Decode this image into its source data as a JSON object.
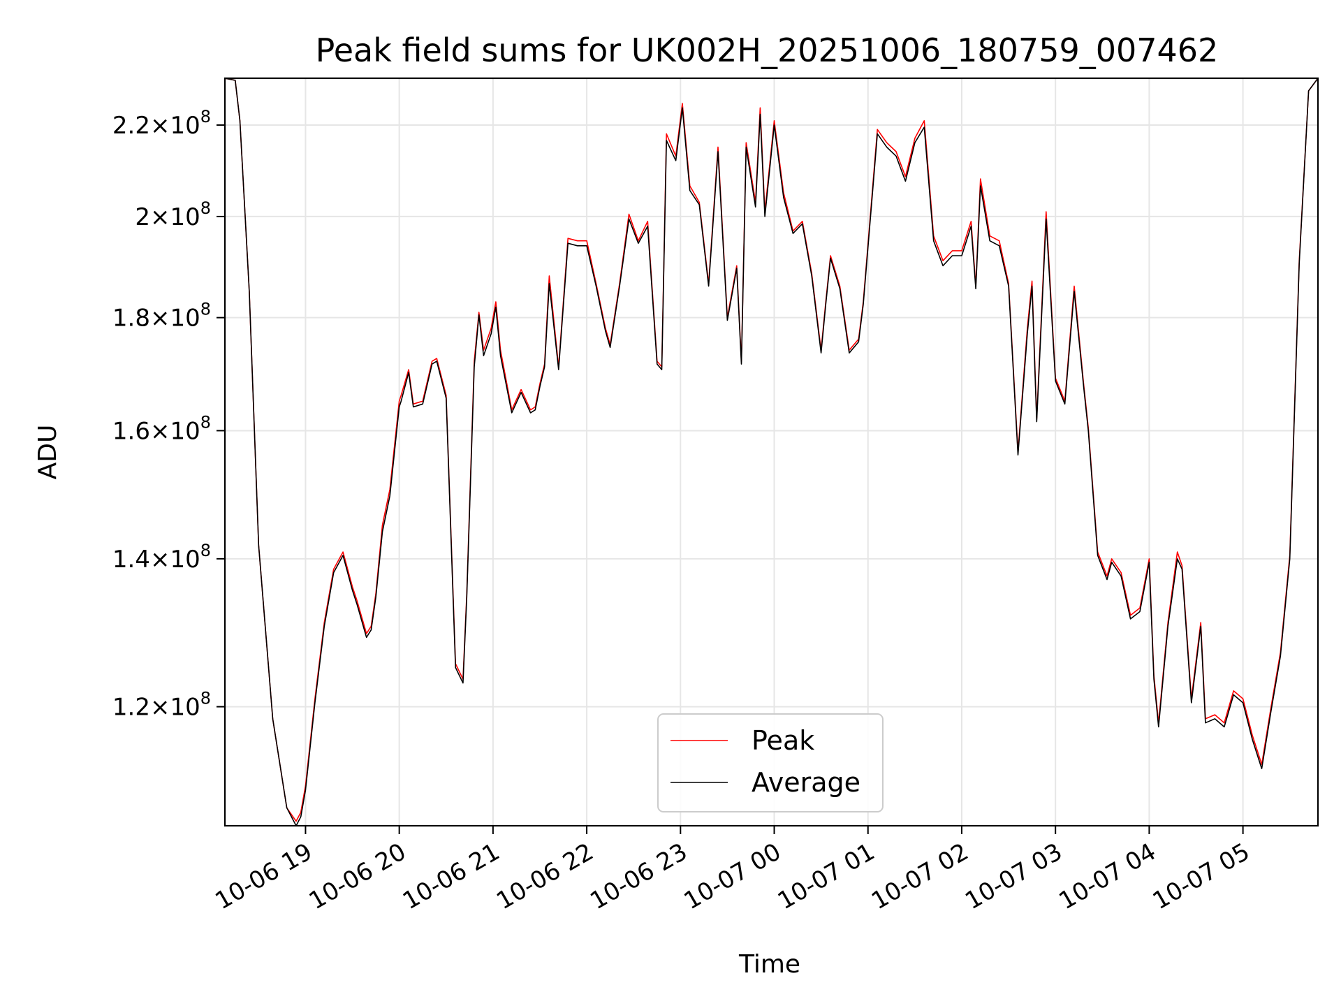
{
  "chart_data": {
    "type": "line",
    "title": "Peak field sums for UK002H_20251006_180759_007462",
    "xlabel": "Time",
    "ylabel": "ADU",
    "yscale": "log",
    "ylim": [
      106000000,
      231000000
    ],
    "xlim": [
      -0.86,
      10.8
    ],
    "grid": true,
    "legend_position": "lower center",
    "x_ticks": [
      {
        "value": 0,
        "label": "10-06 19"
      },
      {
        "value": 1,
        "label": "10-06 20"
      },
      {
        "value": 2,
        "label": "10-06 21"
      },
      {
        "value": 3,
        "label": "10-06 22"
      },
      {
        "value": 4,
        "label": "10-06 23"
      },
      {
        "value": 5,
        "label": "10-07 00"
      },
      {
        "value": 6,
        "label": "10-07 01"
      },
      {
        "value": 7,
        "label": "10-07 02"
      },
      {
        "value": 8,
        "label": "10-07 03"
      },
      {
        "value": 9,
        "label": "10-07 04"
      },
      {
        "value": 10,
        "label": "10-07 05"
      }
    ],
    "y_ticks": [
      {
        "value": 120000000,
        "mantissa": "1.2",
        "base": "10",
        "exp": "8"
      },
      {
        "value": 140000000,
        "mantissa": "1.4",
        "base": "10",
        "exp": "8"
      },
      {
        "value": 160000000,
        "mantissa": "1.6",
        "base": "10",
        "exp": "8"
      },
      {
        "value": 180000000,
        "mantissa": "1.8",
        "base": "10",
        "exp": "8"
      },
      {
        "value": 200000000,
        "mantissa": "2",
        "base": "10",
        "exp": "8"
      },
      {
        "value": 220000000,
        "mantissa": "2.2",
        "base": "10",
        "exp": "8"
      }
    ],
    "x_unit_note": "x values are hours after 10-06 19:00",
    "series": [
      {
        "name": "Peak",
        "color": "#ff0000",
        "x": [
          -0.86,
          -0.75,
          -0.7,
          -0.6,
          -0.5,
          -0.35,
          -0.2,
          -0.1,
          -0.05,
          0.0,
          0.1,
          0.2,
          0.3,
          0.4,
          0.5,
          0.55,
          0.65,
          0.7,
          0.75,
          0.82,
          0.9,
          1.0,
          1.02,
          1.1,
          1.15,
          1.25,
          1.35,
          1.4,
          1.5,
          1.6,
          1.68,
          1.72,
          1.8,
          1.85,
          1.9,
          1.98,
          2.03,
          2.08,
          2.2,
          2.3,
          2.4,
          2.45,
          2.5,
          2.55,
          2.6,
          2.7,
          2.8,
          2.9,
          3.0,
          3.1,
          3.2,
          3.25,
          3.35,
          3.45,
          3.55,
          3.65,
          3.75,
          3.8,
          3.85,
          3.95,
          4.02,
          4.1,
          4.2,
          4.3,
          4.4,
          4.5,
          4.6,
          4.65,
          4.7,
          4.8,
          4.85,
          4.9,
          5.0,
          5.1,
          5.2,
          5.3,
          5.4,
          5.5,
          5.55,
          5.6,
          5.7,
          5.8,
          5.9,
          5.95,
          6.1,
          6.2,
          6.3,
          6.4,
          6.5,
          6.6,
          6.7,
          6.8,
          6.9,
          7.0,
          7.1,
          7.15,
          7.2,
          7.3,
          7.4,
          7.5,
          7.6,
          7.7,
          7.75,
          7.8,
          7.9,
          8.0,
          8.1,
          8.2,
          8.3,
          8.35,
          8.45,
          8.55,
          8.6,
          8.7,
          8.8,
          8.9,
          9.0,
          9.05,
          9.1,
          9.2,
          9.3,
          9.35,
          9.45,
          9.55,
          9.6,
          9.7,
          9.8,
          9.9,
          10.0,
          10.1,
          10.2,
          10.3,
          10.4,
          10.5,
          10.6,
          10.7,
          10.8
        ],
        "values": [
          231000000,
          230500000,
          221000000,
          185000000,
          142000000,
          118500000,
          108000000,
          106500000,
          107500000,
          110500000,
          121000000,
          131000000,
          138500000,
          141000000,
          136000000,
          134000000,
          129500000,
          130500000,
          135000000,
          145000000,
          150500000,
          165000000,
          166000000,
          170500000,
          164500000,
          165000000,
          172000000,
          172500000,
          166000000,
          125500000,
          123500000,
          135000000,
          172000000,
          181000000,
          174000000,
          178000000,
          183000000,
          174000000,
          163500000,
          167000000,
          163500000,
          164000000,
          168000000,
          171500000,
          188000000,
          171000000,
          195500000,
          195000000,
          195000000,
          186500000,
          178000000,
          175000000,
          186500000,
          200500000,
          195000000,
          199000000,
          172000000,
          171000000,
          218000000,
          213000000,
          225000000,
          206500000,
          203000000,
          186500000,
          215000000,
          180000000,
          190000000,
          172000000,
          216000000,
          203000000,
          224000000,
          201000000,
          221000000,
          205000000,
          197000000,
          199000000,
          188500000,
          174000000,
          183000000,
          192000000,
          186000000,
          174000000,
          176000000,
          183000000,
          219000000,
          216000000,
          214000000,
          208500000,
          217000000,
          221000000,
          196000000,
          191000000,
          193000000,
          193000000,
          199000000,
          186000000,
          208000000,
          196000000,
          195000000,
          186500000,
          156500000,
          178000000,
          187000000,
          162000000,
          201000000,
          169000000,
          165000000,
          186000000,
          168000000,
          160500000,
          141000000,
          137500000,
          140000000,
          138000000,
          132000000,
          133000000,
          140000000,
          124000000,
          118000000,
          131000000,
          141000000,
          139000000,
          121000000,
          131000000,
          118500000,
          119000000,
          118000000,
          122000000,
          121000000,
          116500000,
          113000000,
          120000000,
          127000000,
          140500000,
          191000000,
          228000000,
          231000000
        ]
      },
      {
        "name": "Average",
        "color": "#000000",
        "x": [
          -0.86,
          -0.75,
          -0.7,
          -0.6,
          -0.5,
          -0.35,
          -0.2,
          -0.1,
          -0.05,
          0.0,
          0.1,
          0.2,
          0.3,
          0.4,
          0.5,
          0.55,
          0.65,
          0.7,
          0.75,
          0.82,
          0.9,
          1.0,
          1.02,
          1.1,
          1.15,
          1.25,
          1.35,
          1.4,
          1.5,
          1.6,
          1.68,
          1.72,
          1.8,
          1.85,
          1.9,
          1.98,
          2.03,
          2.08,
          2.2,
          2.3,
          2.4,
          2.45,
          2.5,
          2.55,
          2.6,
          2.7,
          2.8,
          2.9,
          3.0,
          3.1,
          3.2,
          3.25,
          3.35,
          3.45,
          3.55,
          3.65,
          3.75,
          3.8,
          3.85,
          3.95,
          4.02,
          4.1,
          4.2,
          4.3,
          4.4,
          4.5,
          4.6,
          4.65,
          4.7,
          4.8,
          4.85,
          4.9,
          5.0,
          5.1,
          5.2,
          5.3,
          5.4,
          5.5,
          5.55,
          5.6,
          5.7,
          5.8,
          5.9,
          5.95,
          6.1,
          6.2,
          6.3,
          6.4,
          6.5,
          6.6,
          6.7,
          6.8,
          6.9,
          7.0,
          7.1,
          7.15,
          7.2,
          7.3,
          7.4,
          7.5,
          7.6,
          7.7,
          7.75,
          7.8,
          7.9,
          8.0,
          8.1,
          8.2,
          8.3,
          8.35,
          8.45,
          8.55,
          8.6,
          8.7,
          8.8,
          8.9,
          9.0,
          9.05,
          9.1,
          9.2,
          9.3,
          9.35,
          9.45,
          9.55,
          9.6,
          9.7,
          9.8,
          9.9,
          10.0,
          10.1,
          10.2,
          10.3,
          10.4,
          10.5,
          10.6,
          10.7,
          10.8
        ],
        "values": [
          231000000,
          230500000,
          221000000,
          185000000,
          142000000,
          118500000,
          108000000,
          106000000,
          107000000,
          110000000,
          120500000,
          130500000,
          138000000,
          140500000,
          135500000,
          133500000,
          129000000,
          130000000,
          134500000,
          144000000,
          149500000,
          164000000,
          165000000,
          170000000,
          164000000,
          164500000,
          171500000,
          172000000,
          165500000,
          125000000,
          123000000,
          134500000,
          171000000,
          180500000,
          173000000,
          177000000,
          182000000,
          173000000,
          163000000,
          166500000,
          163000000,
          163500000,
          167500000,
          171000000,
          186500000,
          170500000,
          194500000,
          194000000,
          194000000,
          186000000,
          177500000,
          174500000,
          186000000,
          199500000,
          194500000,
          198000000,
          171500000,
          170500000,
          216500000,
          212000000,
          224000000,
          205500000,
          202500000,
          186000000,
          214000000,
          179500000,
          189500000,
          171500000,
          215000000,
          202000000,
          222500000,
          200000000,
          220000000,
          204000000,
          196500000,
          198500000,
          188000000,
          173500000,
          182500000,
          191500000,
          185500000,
          173500000,
          175500000,
          182500000,
          218000000,
          215000000,
          213000000,
          207500000,
          216000000,
          219500000,
          195000000,
          190000000,
          192000000,
          192000000,
          198000000,
          185500000,
          206500000,
          195000000,
          194000000,
          186000000,
          156000000,
          177000000,
          186000000,
          161500000,
          199500000,
          168500000,
          164500000,
          185000000,
          167500000,
          160000000,
          140500000,
          137000000,
          139500000,
          137500000,
          131500000,
          132500000,
          139500000,
          123500000,
          117500000,
          130500000,
          140000000,
          138500000,
          120500000,
          130500000,
          118000000,
          118500000,
          117500000,
          121500000,
          120500000,
          116000000,
          112500000,
          119500000,
          126500000,
          140000000,
          190500000,
          228000000,
          231000000
        ]
      }
    ]
  }
}
